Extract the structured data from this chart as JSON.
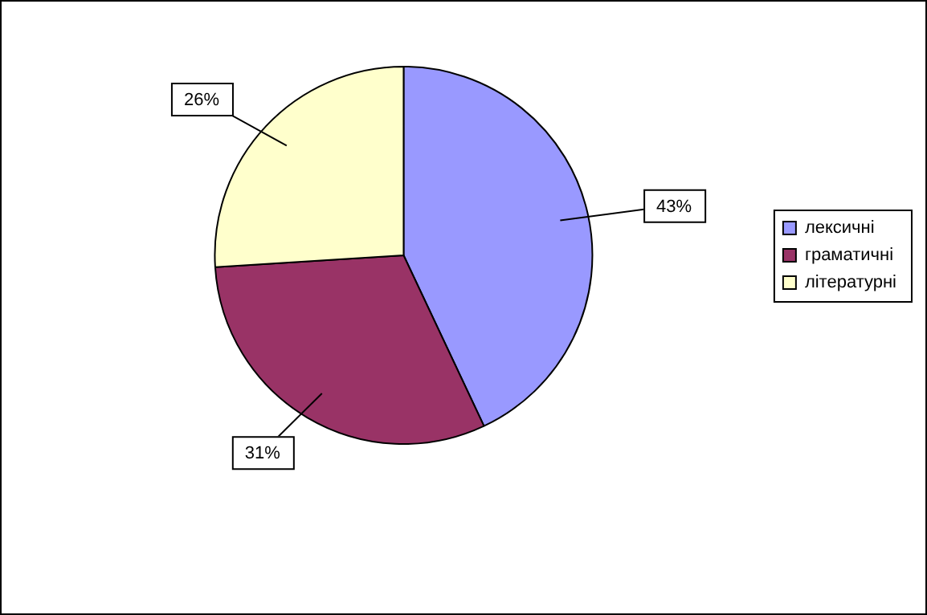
{
  "chart_data": {
    "type": "pie",
    "categories": [
      "лексичні",
      "граматичні",
      "літературні"
    ],
    "values": [
      43,
      31,
      26
    ],
    "colors": [
      "#9999ff",
      "#993366",
      "#ffffcc"
    ],
    "legend": "right",
    "value_labels": [
      "43%",
      "31%",
      "26%"
    ]
  }
}
